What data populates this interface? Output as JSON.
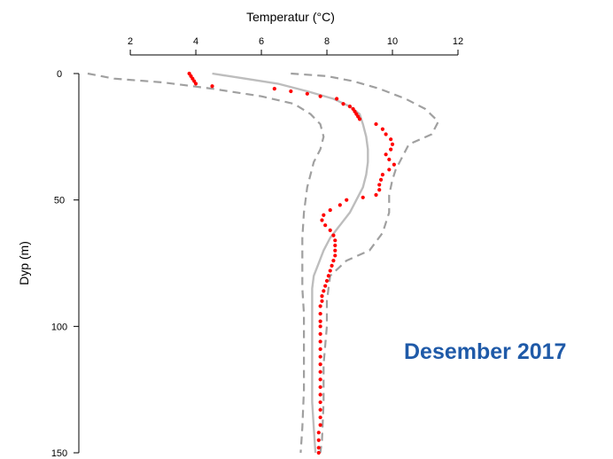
{
  "panel_label": "Desember 2017",
  "colors": {
    "observed": "#ff0000",
    "mean": "#bdbdbd",
    "bounds": "#a0a0a0",
    "label": "#1f5aa8"
  },
  "chart_data": {
    "type": "line",
    "xlabel": "Temperatur (°C)",
    "ylabel": "Dyp (m)",
    "xlim": [
      0.7,
      12
    ],
    "ylim": [
      150,
      0
    ],
    "x_axis_position": "top",
    "y_axis_reversed": true,
    "grid": false,
    "x_ticks": [
      2,
      4,
      6,
      8,
      10,
      12
    ],
    "y_ticks": [
      0,
      50,
      100,
      150
    ],
    "x_tick_labels": [
      "2",
      "4",
      "6",
      "8",
      "10",
      "12"
    ],
    "y_tick_labels": [
      "0",
      "50",
      "100",
      "150"
    ],
    "series": [
      {
        "style": "line-solid",
        "points": [
          [
            4.5,
            0
          ],
          [
            5.5,
            2
          ],
          [
            6.5,
            4
          ],
          [
            7.4,
            7
          ],
          [
            8.2,
            10
          ],
          [
            8.7,
            13
          ],
          [
            9.0,
            16
          ],
          [
            9.1,
            20
          ],
          [
            9.2,
            25
          ],
          [
            9.25,
            30
          ],
          [
            9.25,
            35
          ],
          [
            9.2,
            40
          ],
          [
            9.1,
            45
          ],
          [
            8.9,
            50
          ],
          [
            8.7,
            55
          ],
          [
            8.4,
            60
          ],
          [
            8.1,
            65
          ],
          [
            7.9,
            70
          ],
          [
            7.75,
            75
          ],
          [
            7.6,
            80
          ],
          [
            7.55,
            85
          ],
          [
            7.55,
            90
          ],
          [
            7.55,
            100
          ],
          [
            7.55,
            110
          ],
          [
            7.55,
            120
          ],
          [
            7.55,
            130
          ],
          [
            7.6,
            140
          ],
          [
            7.65,
            150
          ]
        ]
      },
      {
        "style": "line-dashed",
        "points": [
          [
            0.7,
            0
          ],
          [
            1.5,
            2
          ],
          [
            3.0,
            3.5
          ],
          [
            4.5,
            6
          ],
          [
            6.0,
            9
          ],
          [
            7.0,
            12
          ],
          [
            7.5,
            16
          ],
          [
            7.8,
            20
          ],
          [
            7.9,
            25
          ],
          [
            7.8,
            30
          ],
          [
            7.6,
            35
          ],
          [
            7.4,
            45
          ],
          [
            7.3,
            55
          ],
          [
            7.25,
            65
          ],
          [
            7.25,
            75
          ],
          [
            7.25,
            85
          ],
          [
            7.3,
            95
          ],
          [
            7.3,
            110
          ],
          [
            7.3,
            125
          ],
          [
            7.25,
            140
          ],
          [
            7.2,
            150
          ]
        ]
      },
      {
        "style": "line-dashed",
        "points": [
          [
            6.9,
            0
          ],
          [
            8.0,
            1
          ],
          [
            8.8,
            3
          ],
          [
            9.6,
            6
          ],
          [
            10.4,
            10
          ],
          [
            11.0,
            14
          ],
          [
            11.4,
            19
          ],
          [
            11.2,
            24
          ],
          [
            10.5,
            28
          ],
          [
            10.3,
            33
          ],
          [
            10.1,
            38
          ],
          [
            10.0,
            42
          ],
          [
            9.9,
            48
          ],
          [
            9.9,
            55
          ],
          [
            9.7,
            63
          ],
          [
            9.3,
            70
          ],
          [
            8.6,
            74
          ],
          [
            8.1,
            80
          ],
          [
            8.0,
            90
          ],
          [
            8.0,
            100
          ],
          [
            7.9,
            115
          ],
          [
            7.9,
            130
          ],
          [
            7.85,
            145
          ],
          [
            7.8,
            150
          ]
        ]
      },
      {
        "style": "scatter",
        "points": [
          [
            3.8,
            0
          ],
          [
            3.85,
            1
          ],
          [
            3.9,
            2
          ],
          [
            3.95,
            3
          ],
          [
            4.0,
            4
          ],
          [
            4.5,
            5
          ],
          [
            6.4,
            6
          ],
          [
            6.9,
            7
          ],
          [
            7.4,
            8
          ],
          [
            7.8,
            9
          ],
          [
            8.3,
            10
          ],
          [
            8.5,
            12
          ],
          [
            8.7,
            13
          ],
          [
            8.8,
            14
          ],
          [
            8.85,
            15
          ],
          [
            8.9,
            16
          ],
          [
            8.95,
            17
          ],
          [
            9.0,
            18
          ],
          [
            9.5,
            20
          ],
          [
            9.7,
            22
          ],
          [
            9.8,
            24
          ],
          [
            9.95,
            26
          ],
          [
            10.0,
            28
          ],
          [
            9.95,
            30
          ],
          [
            9.8,
            32
          ],
          [
            9.9,
            34
          ],
          [
            10.05,
            36
          ],
          [
            9.9,
            38
          ],
          [
            9.7,
            40
          ],
          [
            9.65,
            42
          ],
          [
            9.6,
            44
          ],
          [
            9.6,
            46
          ],
          [
            9.5,
            48
          ],
          [
            9.1,
            49
          ],
          [
            8.6,
            50
          ],
          [
            8.4,
            52
          ],
          [
            8.1,
            54
          ],
          [
            7.9,
            56
          ],
          [
            7.85,
            58
          ],
          [
            7.95,
            60
          ],
          [
            8.1,
            62
          ],
          [
            8.2,
            64
          ],
          [
            8.25,
            66
          ],
          [
            8.25,
            68
          ],
          [
            8.25,
            70
          ],
          [
            8.25,
            72
          ],
          [
            8.2,
            74
          ],
          [
            8.15,
            76
          ],
          [
            8.1,
            78
          ],
          [
            8.05,
            80
          ],
          [
            8.0,
            82
          ],
          [
            7.95,
            84
          ],
          [
            7.9,
            86
          ],
          [
            7.85,
            88
          ],
          [
            7.85,
            90
          ],
          [
            7.8,
            92
          ],
          [
            7.8,
            95
          ],
          [
            7.8,
            98
          ],
          [
            7.8,
            100
          ],
          [
            7.8,
            103
          ],
          [
            7.8,
            106
          ],
          [
            7.8,
            109
          ],
          [
            7.8,
            112
          ],
          [
            7.8,
            115
          ],
          [
            7.8,
            118
          ],
          [
            7.8,
            121
          ],
          [
            7.8,
            124
          ],
          [
            7.8,
            127
          ],
          [
            7.8,
            130
          ],
          [
            7.8,
            133
          ],
          [
            7.8,
            136
          ],
          [
            7.8,
            139
          ],
          [
            7.75,
            142
          ],
          [
            7.75,
            145
          ],
          [
            7.75,
            148
          ],
          [
            7.75,
            150
          ]
        ]
      }
    ]
  }
}
